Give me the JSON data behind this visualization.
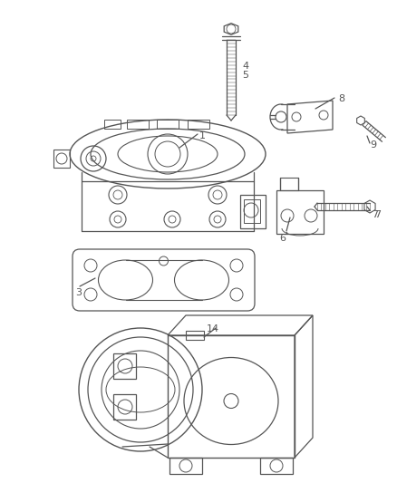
{
  "bg_color": "#ffffff",
  "line_color": "#555555",
  "fig_width": 4.38,
  "fig_height": 5.33,
  "dpi": 100
}
